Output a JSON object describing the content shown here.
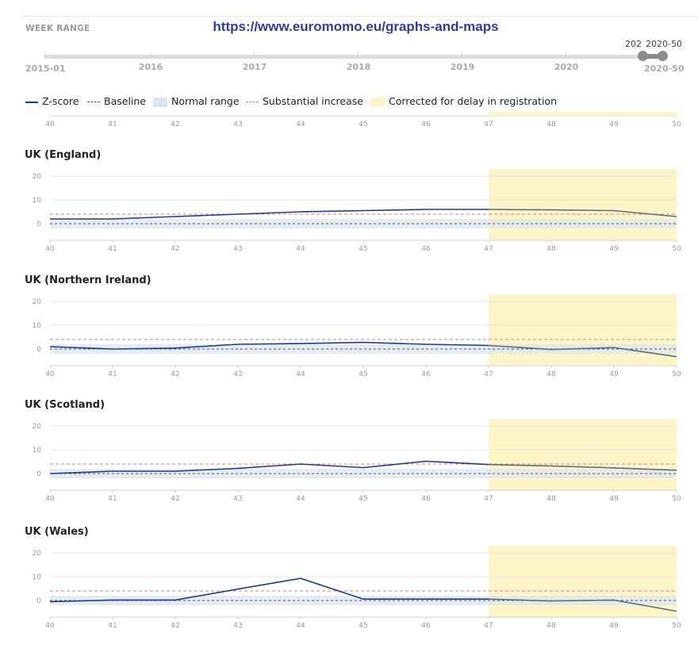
{
  "url_banner": "https://www.euromomo.eu/graphs-and-maps",
  "week_range": {
    "label": "WEEK RANGE",
    "start": "2015-01",
    "end": "2020-50",
    "years": [
      "2016",
      "2017",
      "2018",
      "2019",
      "2020"
    ],
    "handle_start_label": "202",
    "handle_end_label": "2020-50"
  },
  "legend": {
    "zscore": "Z-score",
    "baseline": "Baseline",
    "normal_range": "Normal range",
    "substantial": "Substantial increase",
    "corrected": "Corrected for delay in registration"
  },
  "colors": {
    "zscore": "#1f3a8a",
    "zscore_corrected": "#5a6e85",
    "baseline": "#555555",
    "normal_range": "#dde6f0",
    "substantial": "#d97a8a",
    "corrected": "#fdf5c8"
  },
  "chart_data": [
    {
      "type": "line",
      "title": "UK (England)",
      "x": [
        40,
        41,
        42,
        43,
        44,
        45,
        46,
        47,
        48,
        49,
        50
      ],
      "series": [
        {
          "name": "Z-score",
          "values": [
            2,
            2,
            3,
            4,
            5,
            5.5,
            6,
            6,
            5.8,
            5.5,
            3
          ]
        }
      ],
      "baseline": 0,
      "normal_range": [
        -2,
        2
      ],
      "substantial_increase": 4,
      "corrected_from_week": 47,
      "yticks": [
        0,
        10,
        20
      ],
      "ylim": [
        -7,
        23
      ],
      "xlim": [
        40,
        50
      ]
    },
    {
      "type": "line",
      "title": "UK (Northern Ireland)",
      "x": [
        40,
        41,
        42,
        43,
        44,
        45,
        46,
        47,
        48,
        49,
        50
      ],
      "series": [
        {
          "name": "Z-score",
          "values": [
            1,
            0,
            0.4,
            2,
            2.3,
            2.8,
            2,
            1.5,
            -0.2,
            0.6,
            -3.2
          ]
        }
      ],
      "baseline": 0,
      "normal_range": [
        -2,
        2
      ],
      "substantial_increase": 4,
      "corrected_from_week": 47,
      "yticks": [
        0,
        10,
        20
      ],
      "ylim": [
        -7,
        23
      ],
      "xlim": [
        40,
        50
      ]
    },
    {
      "type": "line",
      "title": "UK (Scotland)",
      "x": [
        40,
        41,
        42,
        43,
        44,
        45,
        46,
        47,
        48,
        49,
        50
      ],
      "series": [
        {
          "name": "Z-score",
          "values": [
            0,
            1,
            1,
            2.2,
            4,
            2.5,
            5.2,
            3.8,
            3.2,
            2.4,
            1.4
          ]
        }
      ],
      "baseline": 0,
      "normal_range": [
        -2,
        2
      ],
      "substantial_increase": 4,
      "corrected_from_week": 47,
      "yticks": [
        0,
        10,
        20
      ],
      "ylim": [
        -7,
        23
      ],
      "xlim": [
        40,
        50
      ]
    },
    {
      "type": "line",
      "title": "UK (Wales)",
      "x": [
        40,
        41,
        42,
        43,
        44,
        45,
        46,
        47,
        48,
        49,
        50
      ],
      "series": [
        {
          "name": "Z-score",
          "values": [
            -0.5,
            0.2,
            0.2,
            4.8,
            9.3,
            0.6,
            0.6,
            0.6,
            -0.2,
            0.2,
            -4.5
          ]
        }
      ],
      "baseline": 0,
      "normal_range": [
        -2,
        2
      ],
      "substantial_increase": 4,
      "corrected_from_week": 47,
      "yticks": [
        0,
        10,
        20
      ],
      "ylim": [
        -7,
        23
      ],
      "xlim": [
        40,
        50
      ]
    }
  ],
  "top_axis_ticks": [
    40,
    41,
    42,
    43,
    44,
    45,
    46,
    47,
    48,
    49,
    50
  ]
}
